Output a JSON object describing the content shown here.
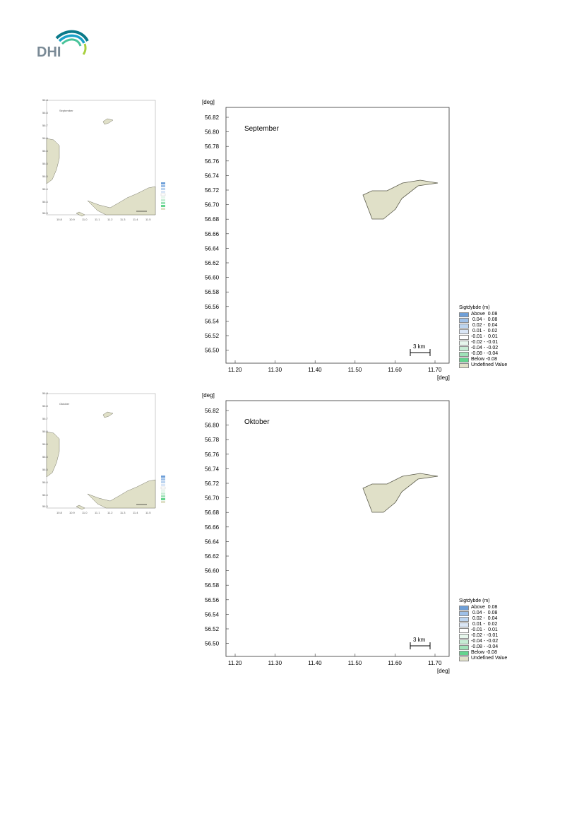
{
  "logo": {
    "text": "DHI"
  },
  "colors": {
    "land": "#e0e0c8",
    "land_stroke": "#5a5a4a"
  },
  "axis": {
    "unit": "[deg]",
    "lat_ticks": [
      "56.82",
      "56.80",
      "56.78",
      "56.76",
      "56.74",
      "56.72",
      "56.70",
      "56.68",
      "56.66",
      "56.64",
      "56.62",
      "56.60",
      "56.58",
      "56.56",
      "56.54",
      "56.52",
      "56.50"
    ],
    "lon_ticks": [
      "11.20",
      "11.30",
      "11.40",
      "11.50",
      "11.60",
      "11.70"
    ]
  },
  "legend": {
    "title": "Sigtdybde (m)",
    "items": [
      {
        "label": "Above  0.08",
        "color": "#6e9fd8"
      },
      {
        "label": " 0.04 -  0.08",
        "color": "#9ec0e8"
      },
      {
        "label": " 0.02 -  0.04",
        "color": "#bcd4ef"
      },
      {
        "label": " 0.01 -  0.02",
        "color": "#dae6f6"
      },
      {
        "label": "-0.01 -  0.01",
        "color": "#ffffff"
      },
      {
        "label": "-0.02 - -0.01",
        "color": "#e6f6ec"
      },
      {
        "label": "-0.04 - -0.02",
        "color": "#c6ecd4"
      },
      {
        "label": "-0.08 - -0.04",
        "color": "#9fe2b8"
      },
      {
        "label": "Below -0.08",
        "color": "#64d48e"
      },
      {
        "label": "Undefined Value",
        "color": "#e0e0c8"
      }
    ]
  },
  "scale_bar": {
    "label": "3 km"
  },
  "maps": [
    {
      "title": "September"
    },
    {
      "title": "Oktober"
    }
  ]
}
